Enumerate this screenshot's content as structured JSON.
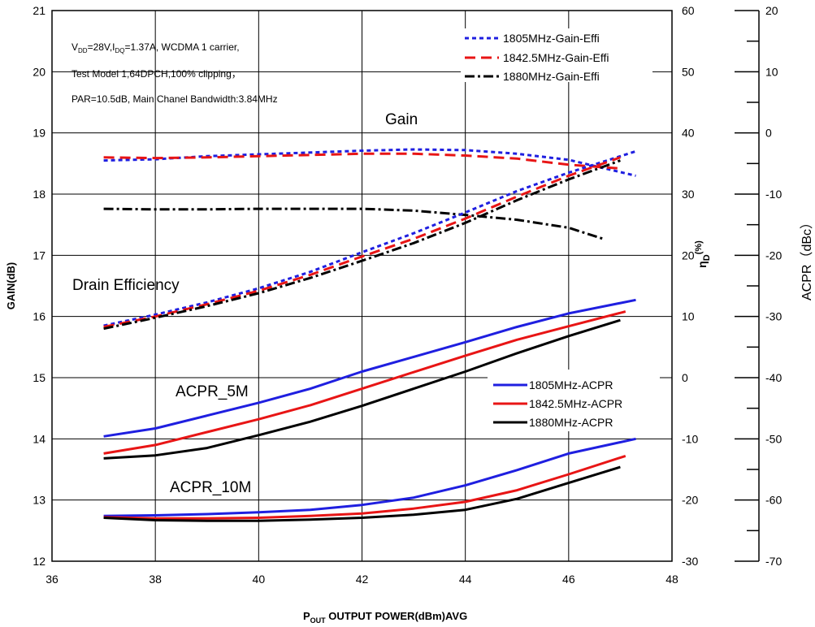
{
  "chart_data": {
    "type": "line",
    "xlabel_main": "P",
    "xlabel_sub": "OUT",
    "xlabel_rest": " OUTPUT POWER(dBm)AVG",
    "ylabel_left": "GAIN(dB)",
    "ylabel_mid_main": "η",
    "ylabel_mid_sub": "D",
    "ylabel_mid_rest": "(%)",
    "ylabel_right": "ACPR（dBc）",
    "xlim": [
      36,
      48
    ],
    "ylim_left": [
      12,
      21
    ],
    "ylim_mid": [
      -30,
      60
    ],
    "ylim_right": [
      -70,
      20
    ],
    "xticks": [
      "36",
      "38",
      "40",
      "42",
      "44",
      "46",
      "48"
    ],
    "yticks_left": [
      "12",
      "13",
      "14",
      "15",
      "16",
      "17",
      "18",
      "19",
      "20",
      "21"
    ],
    "yticks_mid": [
      "-30",
      "-20",
      "-10",
      "0",
      "10",
      "20",
      "30",
      "40",
      "50",
      "60"
    ],
    "yticks_right": [
      "-70",
      "-60",
      "-50",
      "-40",
      "-30",
      "-20",
      "-10",
      "0",
      "10",
      "20"
    ],
    "grid": true,
    "conditions": {
      "line1_a": "V",
      "line1_a_sub": "DD",
      "line1_b": "=28V,I",
      "line1_b_sub": "DQ",
      "line1_c": "=1.37A, WCDMA 1 carrier,",
      "line2": "Test Model 1,64DPCH,100% clipping，",
      "line3": "PAR=10.5dB, Main Chanel Bandwidth:3.84MHz"
    },
    "annotations": {
      "gain": "Gain",
      "drain": "Drain Efficiency",
      "acpr5": "ACPR_5M",
      "acpr10": "ACPR_10M"
    },
    "legend_top": [
      "1805MHz-Gain-Effi",
      "1842.5MHz-Gain-Effi",
      "1880MHz-Gain-Effi"
    ],
    "legend_bottom": [
      "1805MHz-ACPR",
      "1842.5MHz-ACPR",
      "1880MHz-ACPR"
    ],
    "colors": {
      "c1805": "#1f1fe0",
      "c1842": "#e81515",
      "c1880": "#000000"
    },
    "series": [
      {
        "name": "1805MHz-Gain-Effi",
        "axis": "left",
        "dash": "dot",
        "color": "#1f1fe0",
        "x": [
          37,
          38,
          39,
          40,
          41,
          42,
          43,
          44,
          45,
          46,
          47.3
        ],
        "y": [
          18.55,
          18.57,
          18.62,
          18.65,
          18.68,
          18.71,
          18.73,
          18.72,
          18.66,
          18.56,
          18.3
        ]
      },
      {
        "name": "1842.5MHz-Gain-Effi",
        "axis": "left",
        "dash": "dash",
        "color": "#e81515",
        "x": [
          37,
          38,
          39,
          40,
          41,
          42,
          43,
          44,
          45,
          46,
          47
        ],
        "y": [
          18.6,
          18.59,
          18.6,
          18.62,
          18.64,
          18.66,
          18.66,
          18.63,
          18.58,
          18.48,
          18.42
        ]
      },
      {
        "name": "1880MHz-Gain-Effi",
        "axis": "left",
        "dash": "dashdot",
        "color": "#000000",
        "x": [
          37,
          38,
          39,
          40,
          41,
          42,
          43,
          44,
          45,
          46,
          46.7
        ],
        "y": [
          17.76,
          17.75,
          17.75,
          17.76,
          17.76,
          17.76,
          17.73,
          17.66,
          17.58,
          17.45,
          17.26
        ]
      },
      {
        "name": "1805MHz-Gain-Effi",
        "axis": "mid",
        "dash": "dot",
        "color": "#1f1fe0",
        "x": [
          37,
          38,
          39,
          40,
          41,
          42,
          43,
          44,
          45,
          46,
          47.3
        ],
        "y": [
          8.5,
          10.3,
          12.3,
          14.6,
          17.3,
          20.5,
          23.6,
          27.0,
          30.5,
          33.5,
          37.0
        ]
      },
      {
        "name": "1842.5MHz-Gain-Effi",
        "axis": "mid",
        "dash": "dash",
        "color": "#e81515",
        "x": [
          37,
          38,
          39,
          40,
          41,
          42,
          43,
          44,
          45,
          46,
          47
        ],
        "y": [
          8.3,
          10.0,
          12.0,
          14.2,
          16.8,
          19.8,
          22.7,
          26.0,
          29.6,
          33.0,
          36.0
        ]
      },
      {
        "name": "1880MHz-Gain-Effi",
        "axis": "mid",
        "dash": "dashdot",
        "color": "#000000",
        "x": [
          37,
          38,
          39,
          40,
          41,
          42,
          43,
          44,
          45,
          46,
          47
        ],
        "y": [
          8.0,
          9.8,
          11.7,
          13.8,
          16.3,
          19.1,
          22.0,
          25.3,
          29.0,
          32.4,
          35.5
        ]
      },
      {
        "name": "1805MHz-ACPR",
        "axis": "right",
        "dash": "solid",
        "color": "#1f1fe0",
        "x": [
          37,
          38,
          39,
          40,
          41,
          42,
          43,
          44,
          45,
          46,
          47.3
        ],
        "y": [
          -49.6,
          -48.3,
          -46.2,
          -44.1,
          -41.8,
          -39.0,
          -36.6,
          -34.2,
          -31.7,
          -29.5,
          -27.3
        ]
      },
      {
        "name": "1842.5MHz-ACPR",
        "axis": "right",
        "dash": "solid",
        "color": "#e81515",
        "x": [
          37,
          38,
          39,
          40,
          41,
          42,
          43,
          44,
          45,
          46,
          47.1
        ],
        "y": [
          -52.4,
          -51.0,
          -48.9,
          -46.8,
          -44.5,
          -41.8,
          -39.1,
          -36.4,
          -33.8,
          -31.6,
          -29.2
        ]
      },
      {
        "name": "1880MHz-ACPR",
        "axis": "right",
        "dash": "solid",
        "color": "#000000",
        "x": [
          37,
          38,
          39,
          40,
          41,
          42,
          43,
          44,
          45,
          46,
          47
        ],
        "y": [
          -53.2,
          -52.7,
          -51.5,
          -49.4,
          -47.2,
          -44.6,
          -41.8,
          -39.0,
          -36.0,
          -33.2,
          -30.6
        ]
      },
      {
        "name": "1805MHz-ACPR",
        "axis": "right",
        "dash": "solid",
        "color": "#1f1fe0",
        "x": [
          37,
          38,
          39,
          40,
          41,
          42,
          43,
          44,
          45,
          46,
          47.3
        ],
        "y": [
          -62.6,
          -62.5,
          -62.3,
          -62.0,
          -61.6,
          -60.8,
          -59.6,
          -57.6,
          -55.1,
          -52.4,
          -50.0
        ]
      },
      {
        "name": "1842.5MHz-ACPR",
        "axis": "right",
        "dash": "solid",
        "color": "#e81515",
        "x": [
          37,
          38,
          39,
          40,
          41,
          42,
          43,
          44,
          45,
          46,
          47.1
        ],
        "y": [
          -62.8,
          -63.0,
          -63.0,
          -62.9,
          -62.6,
          -62.2,
          -61.4,
          -60.3,
          -58.4,
          -55.8,
          -52.8
        ]
      },
      {
        "name": "1880MHz-ACPR",
        "axis": "right",
        "dash": "solid",
        "color": "#000000",
        "x": [
          37,
          38,
          39,
          40,
          41,
          42,
          43,
          44,
          45,
          46,
          47
        ],
        "y": [
          -62.9,
          -63.3,
          -63.4,
          -63.4,
          -63.2,
          -62.9,
          -62.4,
          -61.6,
          -59.8,
          -57.2,
          -54.6
        ]
      }
    ]
  }
}
